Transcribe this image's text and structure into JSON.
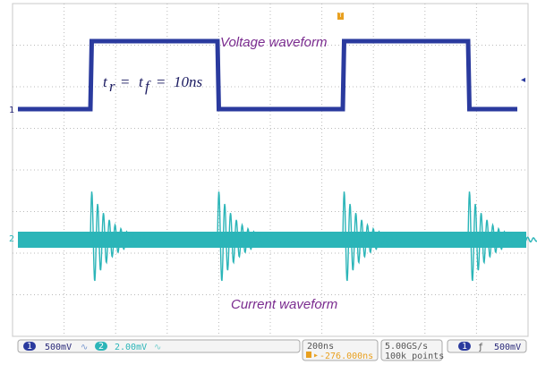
{
  "screen": {
    "voltage_label": "Voltage waveform",
    "current_label": "Current waveform",
    "equation": {
      "t1": "t",
      "sub1": "r",
      "eq1": "=",
      "t2": "t",
      "sub2": "f",
      "eq2": "=",
      "rest": "10ns"
    },
    "markers": {
      "ch1": "1",
      "ch2": "2",
      "trigger": "T"
    }
  },
  "status_bar": {
    "ch1_badge": "1",
    "ch1_scale": "500mV",
    "ch2_badge": "2",
    "ch2_scale": "2.00mV",
    "timebase": "200ns",
    "trigger_pos": "-276.000ns",
    "sample_rate": "5.00GS/s",
    "record_length": "100k points",
    "trig_badge": "1",
    "trig_level": "500mV"
  }
}
